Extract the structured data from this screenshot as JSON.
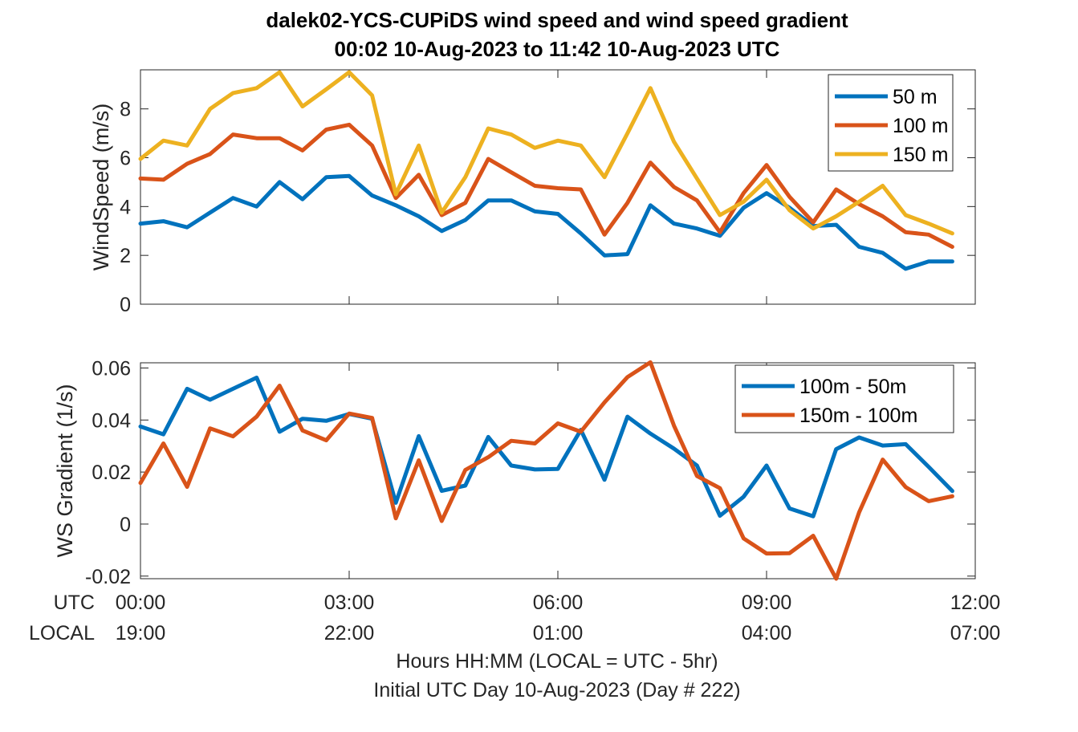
{
  "figure": {
    "title_line1": "dalek02-YCS-CUPiDS  wind speed and wind speed gradient",
    "title_line2": "00:02 10-Aug-2023 to 11:42 10-Aug-2023  UTC",
    "x_row_utc_label": "UTC",
    "x_row_local_label": "LOCAL",
    "xlabel_line1": "Hours HH:MM  (LOCAL = UTC - 5hr)",
    "xlabel_line2": "Initial UTC Day 10-Aug-2023 (Day # 222)"
  },
  "chart_data": [
    {
      "type": "line",
      "ylabel": "WindSpeed (m/s)",
      "xlim": [
        0,
        12
      ],
      "ylim": [
        0,
        9.6
      ],
      "yticks": [
        0,
        2,
        4,
        6,
        8
      ],
      "ytick_labels": [
        "0",
        "2",
        "4",
        "6",
        "8"
      ],
      "xticks": [
        0,
        3,
        6,
        9,
        12
      ],
      "xtick_labels_utc": [
        "00:00",
        "03:00",
        "06:00",
        "09:00",
        "12:00"
      ],
      "xtick_labels_local": [
        "19:00",
        "22:00",
        "01:00",
        "04:00",
        "07:00"
      ],
      "grid": false,
      "legend_position": "top-right",
      "x": [
        0.0,
        0.33,
        0.67,
        1.0,
        1.33,
        1.67,
        2.0,
        2.33,
        2.67,
        3.0,
        3.33,
        3.67,
        4.0,
        4.33,
        4.67,
        5.0,
        5.33,
        5.67,
        6.0,
        6.33,
        6.67,
        7.0,
        7.33,
        7.67,
        8.0,
        8.33,
        8.67,
        9.0,
        9.33,
        9.67,
        10.0,
        10.33,
        10.67,
        11.0,
        11.33,
        11.67
      ],
      "series": [
        {
          "name": "50 m",
          "color": "#0072BD",
          "values": [
            3.3,
            3.4,
            3.15,
            3.75,
            4.35,
            4.0,
            5.0,
            4.3,
            5.2,
            5.25,
            4.45,
            4.05,
            3.6,
            3.0,
            3.45,
            4.25,
            4.25,
            3.8,
            3.7,
            2.9,
            2.0,
            2.05,
            4.05,
            3.3,
            3.1,
            2.8,
            3.95,
            4.55,
            3.95,
            3.2,
            3.25,
            2.35,
            2.1,
            1.45,
            1.75,
            1.75
          ]
        },
        {
          "name": "100 m",
          "color": "#D95319",
          "values": [
            5.15,
            5.1,
            5.75,
            6.15,
            6.95,
            6.8,
            6.8,
            6.3,
            7.15,
            7.35,
            6.5,
            4.35,
            5.3,
            3.65,
            4.15,
            5.95,
            5.4,
            4.85,
            4.75,
            4.7,
            2.85,
            4.15,
            5.8,
            4.8,
            4.25,
            2.95,
            4.55,
            5.7,
            4.4,
            3.35,
            4.7,
            4.1,
            3.6,
            2.95,
            2.85,
            2.35
          ]
        },
        {
          "name": "150 m",
          "color": "#EDB120",
          "values": [
            5.95,
            6.7,
            6.5,
            8.0,
            8.65,
            8.85,
            9.5,
            8.1,
            8.8,
            9.5,
            8.55,
            4.5,
            6.5,
            3.75,
            5.2,
            7.2,
            6.95,
            6.4,
            6.7,
            6.5,
            5.2,
            7.0,
            8.85,
            6.65,
            5.15,
            3.65,
            4.2,
            5.1,
            3.85,
            3.1,
            3.6,
            4.2,
            4.85,
            3.65,
            3.3,
            2.9
          ]
        }
      ]
    },
    {
      "type": "line",
      "ylabel": "WS Gradient (1/s)",
      "xlim": [
        0,
        12
      ],
      "ylim": [
        -0.021,
        0.062
      ],
      "yticks": [
        -0.02,
        0,
        0.02,
        0.04,
        0.06
      ],
      "ytick_labels": [
        "-0.02",
        "0",
        "0.02",
        "0.04",
        "0.06"
      ],
      "xticks": [
        0,
        3,
        6,
        9,
        12
      ],
      "grid": false,
      "legend_position": "top-right",
      "x": [
        0.0,
        0.33,
        0.67,
        1.0,
        1.33,
        1.67,
        2.0,
        2.33,
        2.67,
        3.0,
        3.33,
        3.67,
        4.0,
        4.33,
        4.67,
        5.0,
        5.33,
        5.67,
        6.0,
        6.33,
        6.67,
        7.0,
        7.33,
        7.67,
        8.0,
        8.33,
        8.67,
        9.0,
        9.33,
        9.67,
        10.0,
        10.33,
        10.67,
        11.0,
        11.33,
        11.67
      ],
      "series": [
        {
          "name": "100m - 50m",
          "color": "#0072BD",
          "values": [
            0.0375,
            0.0345,
            0.052,
            0.0478,
            0.052,
            0.0563,
            0.0355,
            0.0405,
            0.0397,
            0.0423,
            0.0405,
            0.0082,
            0.0338,
            0.0128,
            0.0148,
            0.0335,
            0.0225,
            0.021,
            0.0212,
            0.0362,
            0.017,
            0.0413,
            0.0348,
            0.029,
            0.0225,
            0.0032,
            0.0105,
            0.0225,
            0.006,
            0.003,
            0.0288,
            0.0333,
            0.0302,
            0.0307,
            0.022,
            0.0127
          ]
        },
        {
          "name": "150m - 100m",
          "color": "#D95319",
          "values": [
            0.0158,
            0.031,
            0.0143,
            0.0368,
            0.0337,
            0.0413,
            0.0532,
            0.036,
            0.0322,
            0.0425,
            0.0408,
            0.0022,
            0.0245,
            0.0012,
            0.0208,
            0.0257,
            0.032,
            0.031,
            0.0387,
            0.0355,
            0.0468,
            0.0565,
            0.0622,
            0.0378,
            0.0185,
            0.0138,
            -0.0055,
            -0.0113,
            -0.0112,
            -0.0045,
            -0.021,
            0.0045,
            0.0248,
            0.0142,
            0.0088,
            0.0107
          ]
        }
      ]
    }
  ]
}
